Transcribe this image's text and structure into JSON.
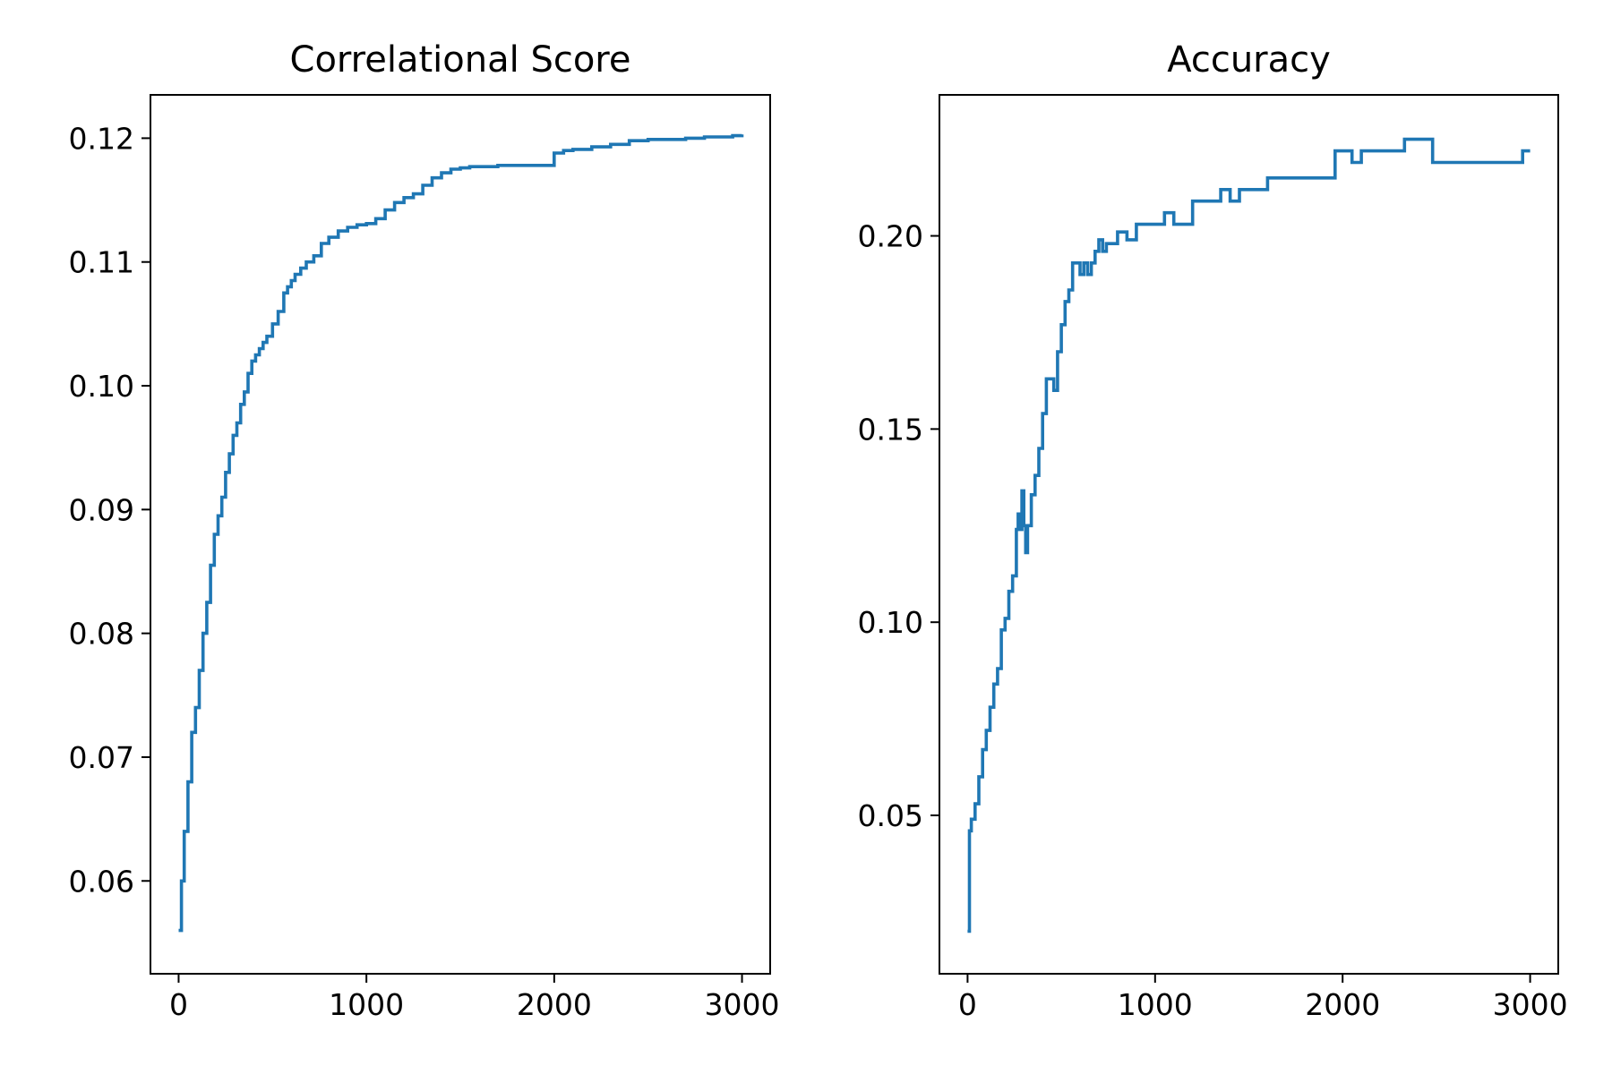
{
  "chart_data": [
    {
      "type": "line",
      "title": "Correlational Score",
      "xlabel": "",
      "ylabel": "",
      "xlim": [
        -150,
        3150
      ],
      "ylim": [
        0.0525,
        0.1235
      ],
      "xticks": [
        0,
        1000,
        2000,
        3000
      ],
      "xtick_labels": [
        "0",
        "1000",
        "2000",
        "3000"
      ],
      "yticks": [
        0.06,
        0.07,
        0.08,
        0.09,
        0.1,
        0.11,
        0.12
      ],
      "ytick_labels": [
        "0.06",
        "0.07",
        "0.08",
        "0.09",
        "0.10",
        "0.11",
        "0.12"
      ],
      "grid": false,
      "legend": "none",
      "color": "#1f77b4",
      "series": [
        {
          "x": [
            0,
            15,
            30,
            50,
            70,
            90,
            110,
            130,
            150,
            170,
            190,
            210,
            230,
            250,
            270,
            290,
            310,
            330,
            350,
            370,
            390,
            410,
            430,
            450,
            470,
            500,
            530,
            560,
            580,
            600,
            620,
            650,
            680,
            720,
            760,
            800,
            850,
            900,
            950,
            1000,
            1050,
            1100,
            1150,
            1200,
            1250,
            1300,
            1350,
            1400,
            1450,
            1500,
            1550,
            1600,
            1700,
            1800,
            1900,
            1960,
            2000,
            2050,
            2100,
            2200,
            2300,
            2400,
            2500,
            2600,
            2700,
            2800,
            2900,
            2950,
            3000
          ],
          "y": [
            0.056,
            0.06,
            0.064,
            0.068,
            0.072,
            0.074,
            0.077,
            0.08,
            0.0825,
            0.0855,
            0.088,
            0.0895,
            0.091,
            0.093,
            0.0945,
            0.096,
            0.097,
            0.0985,
            0.0995,
            0.101,
            0.102,
            0.1025,
            0.103,
            0.1035,
            0.104,
            0.105,
            0.106,
            0.1075,
            0.108,
            0.1085,
            0.109,
            0.1095,
            0.11,
            0.1105,
            0.1115,
            0.112,
            0.1125,
            0.1128,
            0.113,
            0.1131,
            0.1135,
            0.1142,
            0.1148,
            0.1152,
            0.1155,
            0.1162,
            0.1168,
            0.1172,
            0.1175,
            0.1176,
            0.1177,
            0.1177,
            0.1178,
            0.1178,
            0.1178,
            0.1178,
            0.1188,
            0.119,
            0.1191,
            0.1193,
            0.1195,
            0.1198,
            0.1199,
            0.1199,
            0.12,
            0.1201,
            0.1201,
            0.1202,
            0.1203
          ]
        }
      ]
    },
    {
      "type": "line",
      "title": "Accuracy",
      "xlabel": "",
      "ylabel": "",
      "xlim": [
        -150,
        3150
      ],
      "ylim": [
        0.009,
        0.2365
      ],
      "xticks": [
        0,
        1000,
        2000,
        3000
      ],
      "xtick_labels": [
        "0",
        "1000",
        "2000",
        "3000"
      ],
      "yticks": [
        0.05,
        0.1,
        0.15,
        0.2
      ],
      "ytick_labels": [
        "0.05",
        "0.10",
        "0.15",
        "0.20"
      ],
      "grid": false,
      "legend": "none",
      "color": "#1f77b4",
      "series": [
        {
          "x": [
            0,
            10,
            20,
            40,
            60,
            80,
            100,
            120,
            140,
            160,
            180,
            200,
            220,
            240,
            260,
            270,
            280,
            290,
            300,
            310,
            320,
            340,
            360,
            380,
            400,
            420,
            440,
            460,
            480,
            500,
            520,
            540,
            560,
            580,
            600,
            620,
            640,
            660,
            680,
            700,
            720,
            740,
            760,
            800,
            850,
            900,
            950,
            1000,
            1050,
            1100,
            1200,
            1300,
            1350,
            1400,
            1450,
            1600,
            1700,
            1800,
            1900,
            1960,
            2000,
            2050,
            2100,
            2200,
            2300,
            2330,
            2400,
            2480,
            2600,
            2800,
            2950,
            2960,
            3000
          ],
          "y": [
            0.02,
            0.046,
            0.049,
            0.053,
            0.06,
            0.067,
            0.072,
            0.078,
            0.084,
            0.088,
            0.098,
            0.101,
            0.108,
            0.112,
            0.124,
            0.128,
            0.124,
            0.134,
            0.125,
            0.118,
            0.125,
            0.133,
            0.138,
            0.145,
            0.154,
            0.163,
            0.163,
            0.16,
            0.17,
            0.177,
            0.183,
            0.186,
            0.193,
            0.193,
            0.19,
            0.193,
            0.19,
            0.193,
            0.196,
            0.199,
            0.196,
            0.198,
            0.198,
            0.201,
            0.199,
            0.203,
            0.203,
            0.203,
            0.206,
            0.203,
            0.209,
            0.209,
            0.212,
            0.209,
            0.212,
            0.215,
            0.215,
            0.215,
            0.215,
            0.222,
            0.222,
            0.219,
            0.222,
            0.222,
            0.222,
            0.225,
            0.225,
            0.219,
            0.219,
            0.219,
            0.219,
            0.222,
            0.222
          ]
        }
      ]
    }
  ]
}
